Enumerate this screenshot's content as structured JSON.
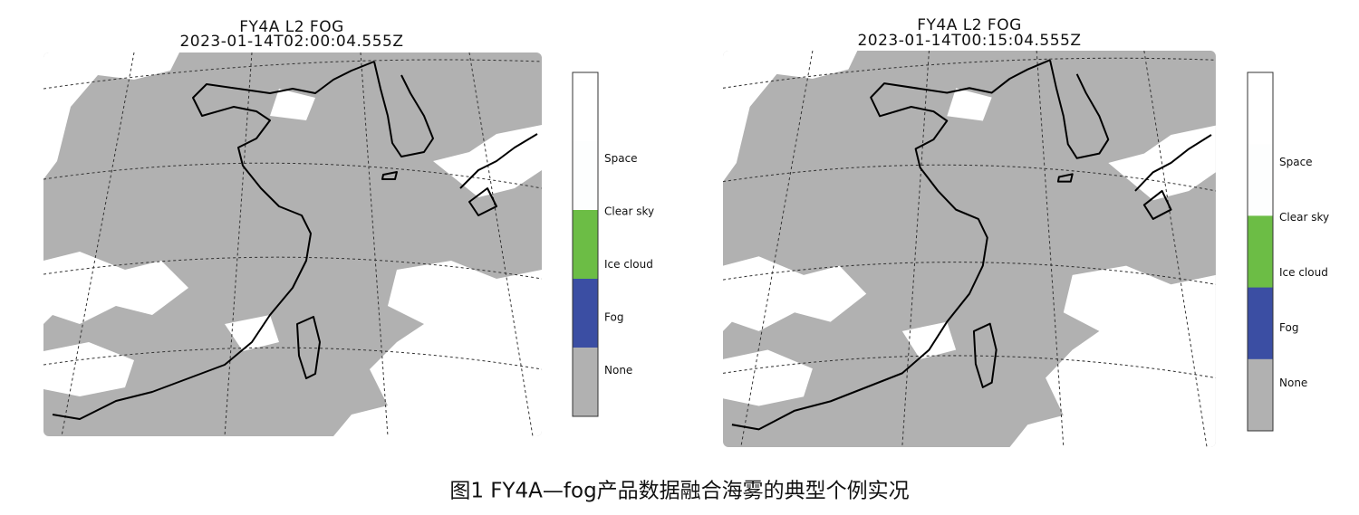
{
  "panels": [
    {
      "title": "FY4A L2 FOG",
      "timestamp": "2023-01-14T02:00:04.555Z",
      "legend": [
        {
          "label": "Space",
          "color": "#ffffff"
        },
        {
          "label": "Clear sky",
          "color": "#fdfefe"
        },
        {
          "label": "Ice cloud",
          "color": "#6cbd45"
        },
        {
          "label": "Fog",
          "color": "#3b4ea3"
        },
        {
          "label": "None",
          "color": "#b1b1b1"
        }
      ]
    },
    {
      "title": "FY4A L2 FOG",
      "timestamp": "2023-01-14T00:15:04.555Z",
      "legend": [
        {
          "label": "Space",
          "color": "#ffffff"
        },
        {
          "label": "Clear sky",
          "color": "#fdfefe"
        },
        {
          "label": "Ice cloud",
          "color": "#6cbd45"
        },
        {
          "label": "Fog",
          "color": "#3b4ea3"
        },
        {
          "label": "None",
          "color": "#b1b1b1"
        }
      ]
    }
  ],
  "caption": "图1 FY4A—fog产品数据融合海雾的典型个例实况"
}
